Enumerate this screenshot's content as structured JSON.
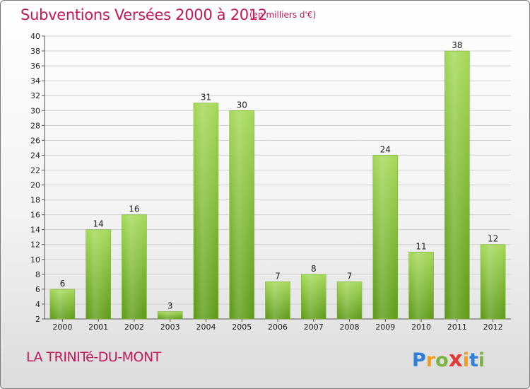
{
  "header": {
    "title": "Subventions Versées 2000 à 2012",
    "unit": "(en milliers d'€)"
  },
  "footer": {
    "commune": "LA TRINITé-DU-MONT",
    "logo_letters": [
      "P",
      "r",
      "o",
      "x",
      "i",
      "t",
      "i"
    ],
    "logo_colors": [
      "#2e7fd8",
      "#f39c12",
      "#7cb342",
      "#e53935",
      "#f39c12",
      "#2e7fd8",
      "#7cb342"
    ]
  },
  "colors": {
    "title": "#c2185b",
    "bar_top": "#a6d95a",
    "bar_bottom": "#5f9c1a",
    "grid": "#d0d0d0"
  },
  "chart_data": {
    "type": "bar",
    "title": "Subventions Versées 2000 à 2012",
    "subtitle": "(en milliers d'€)",
    "categories": [
      "2000",
      "2001",
      "2002",
      "2003",
      "2004",
      "2005",
      "2006",
      "2007",
      "2008",
      "2009",
      "2010",
      "2011",
      "2012"
    ],
    "values": [
      6,
      14,
      16,
      3,
      31,
      30,
      7,
      8,
      7,
      24,
      11,
      38,
      12
    ],
    "ylim": [
      2,
      40
    ],
    "yticks": [
      2,
      4,
      6,
      8,
      10,
      12,
      14,
      16,
      18,
      20,
      22,
      24,
      26,
      28,
      30,
      32,
      34,
      36,
      38,
      40
    ],
    "grid": true,
    "xlabel": "",
    "ylabel": ""
  }
}
